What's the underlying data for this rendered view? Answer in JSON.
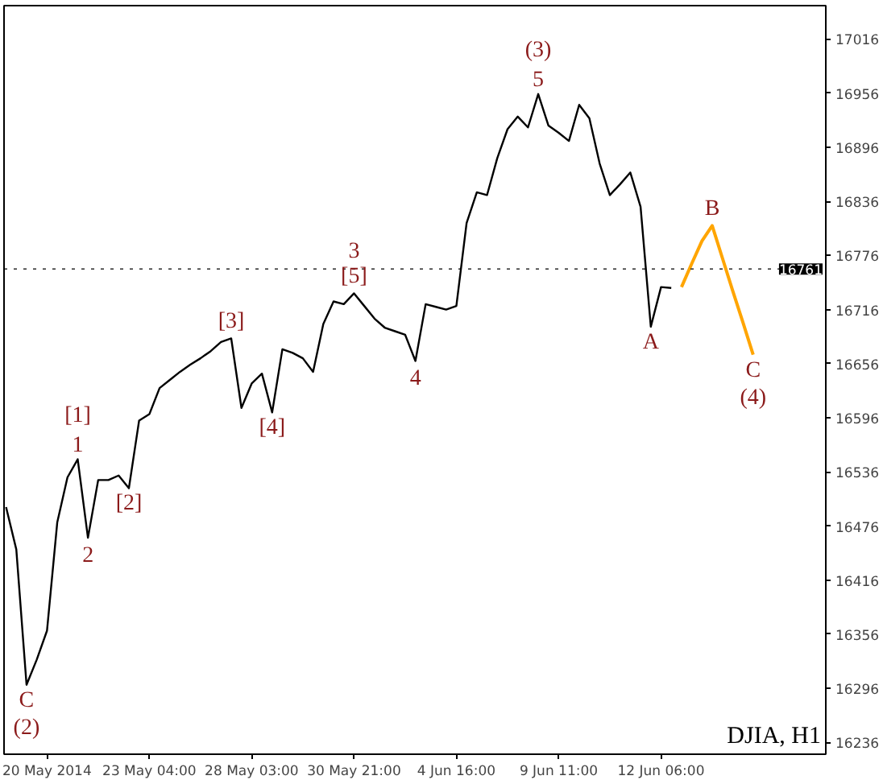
{
  "chart_data": {
    "type": "line",
    "categories": [
      null,
      null,
      null,
      null,
      "20 May 2014",
      null,
      null,
      null,
      null,
      null,
      null,
      null,
      null,
      null,
      "23 May 04:00",
      null,
      null,
      null,
      null,
      null,
      null,
      null,
      null,
      null,
      "28 May 03:00",
      null,
      null,
      null,
      null,
      null,
      null,
      null,
      null,
      null,
      "30 May 21:00",
      null,
      null,
      null,
      null,
      null,
      null,
      null,
      null,
      null,
      "4 Jun 16:00",
      null,
      null,
      null,
      null,
      null,
      null,
      null,
      null,
      null,
      "9 Jun 11:00",
      null,
      null,
      null,
      null,
      null,
      null,
      null,
      null,
      null,
      "12 Jun 06:00",
      null,
      null,
      null,
      null,
      null,
      null,
      null,
      null,
      null,
      null,
      null,
      null,
      null,
      null,
      null,
      null
    ],
    "ylim": [
      16223,
      17053
    ],
    "yticks": [
      16236,
      16296,
      16356,
      16416,
      16476,
      16536,
      16596,
      16656,
      16716,
      16776,
      16836,
      16896,
      16956,
      17016
    ],
    "grid": false,
    "line_style": "solid",
    "series": [
      {
        "color": "#000000",
        "values": [
          16497,
          16450,
          16300,
          16328,
          16360,
          16480,
          16530,
          16550,
          16463,
          16527,
          16527,
          16532,
          16518,
          16593,
          16600,
          16629,
          16638,
          16647,
          16655,
          16662,
          16670,
          16680,
          16684,
          16607,
          16634,
          16645,
          16602,
          16672,
          16668,
          16662,
          16647,
          16700,
          16725,
          16722,
          16734,
          16720,
          16706,
          16696,
          16692,
          16688,
          16659,
          16722,
          16719,
          16716,
          16720,
          16812,
          16846,
          16843,
          16884,
          16916,
          16930,
          16918,
          16955,
          16920,
          16912,
          16903,
          16943,
          16928,
          16878,
          16843,
          16855,
          16868,
          16830,
          16697,
          16741,
          16740,
          null,
          null,
          null,
          null,
          null,
          null,
          null,
          null,
          null,
          null,
          null,
          null,
          null,
          null,
          null
        ]
      },
      {
        "color": "#ffa500",
        "values": [
          null,
          null,
          null,
          null,
          null,
          null,
          null,
          null,
          null,
          null,
          null,
          null,
          null,
          null,
          null,
          null,
          null,
          null,
          null,
          null,
          null,
          null,
          null,
          null,
          null,
          null,
          null,
          null,
          null,
          null,
          null,
          null,
          null,
          null,
          null,
          null,
          null,
          null,
          null,
          null,
          null,
          null,
          null,
          null,
          null,
          null,
          null,
          null,
          null,
          null,
          null,
          null,
          null,
          null,
          null,
          null,
          null,
          null,
          null,
          null,
          null,
          null,
          null,
          null,
          null,
          null,
          16741,
          16767,
          16792,
          16809,
          16773,
          16737,
          16702,
          16666,
          null,
          null,
          null,
          null,
          null,
          null,
          null
        ]
      }
    ],
    "ref_lines": [
      {
        "axis": "y",
        "value": 16761,
        "label": "16761",
        "color": "#000000",
        "line_style": "dotted"
      }
    ],
    "annotations": [
      {
        "text": "5",
        "y": 16955
      },
      {
        "text": "(3)",
        "y": 16955
      },
      {
        "text": "[5]",
        "y": 16734
      },
      {
        "text": "3",
        "y": 16734
      },
      {
        "text": "[3]",
        "y": 16684
      },
      {
        "text": "4",
        "y": 16659
      },
      {
        "text": "A",
        "y": 16697
      },
      {
        "text": "B",
        "y": 16809
      },
      {
        "text": "C",
        "y": 16666
      },
      {
        "text": "(4)",
        "y": 16666
      },
      {
        "text": "[4]",
        "y": 16602
      },
      {
        "text": "1",
        "y": 16550
      },
      {
        "text": "[1]",
        "y": 16550
      },
      {
        "text": "[2]",
        "y": 16518
      },
      {
        "text": "2",
        "y": 16463
      },
      {
        "text": "C",
        "y": 16300
      },
      {
        "text": "(2)",
        "y": 16300
      },
      "DJIA, H1"
    ]
  }
}
